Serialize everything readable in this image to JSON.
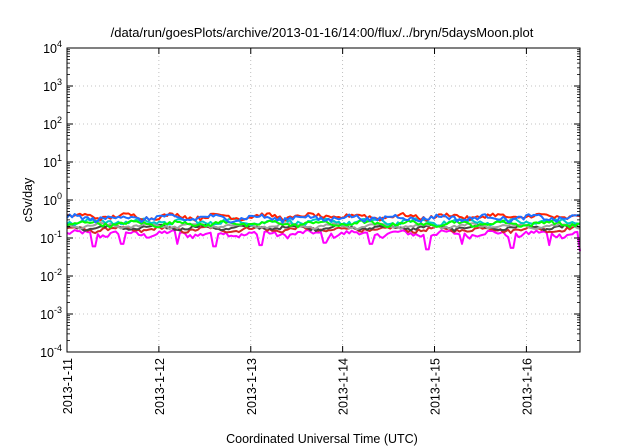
{
  "chart_data": {
    "type": "line",
    "title": "/data/run/goesPlots/archive/2013-01-16/14:00/flux/../bryn/5daysMoon.plot",
    "xlabel": "Coordinated Universal Time (UTC)",
    "ylabel": "cSv/day",
    "y_scale": "log",
    "ylim": [
      0.0001,
      10000
    ],
    "xlim": [
      "2013-01-11 00:00",
      "2013-01-16 14:00"
    ],
    "x_ticks": [
      "2013-1-11",
      "2013-1-12",
      "2013-1-13",
      "2013-1-14",
      "2013-1-15",
      "2013-1-16"
    ],
    "y_ticks": [
      {
        "value": 0.0001,
        "base": "10",
        "exp": "-4"
      },
      {
        "value": 0.001,
        "base": "10",
        "exp": "-3"
      },
      {
        "value": 0.01,
        "base": "10",
        "exp": "-2"
      },
      {
        "value": 0.1,
        "base": "10",
        "exp": "-1"
      },
      {
        "value": 1,
        "base": "10",
        "exp": "0"
      },
      {
        "value": 10,
        "base": "10",
        "exp": "1"
      },
      {
        "value": 100,
        "base": "10",
        "exp": "2"
      },
      {
        "value": 1000,
        "base": "10",
        "exp": "3"
      },
      {
        "value": 10000,
        "base": "10",
        "exp": "4"
      }
    ],
    "grid": true,
    "series": [
      {
        "color": "#ff00ff",
        "base": 0.13,
        "var": 0.14,
        "spikes": [
          {
            "x": 0.3,
            "v": 0.06
          },
          {
            "x": 0.6,
            "v": 0.07
          },
          {
            "x": 1.2,
            "v": 0.07
          },
          {
            "x": 1.6,
            "v": 0.06
          },
          {
            "x": 2.1,
            "v": 0.065
          },
          {
            "x": 2.8,
            "v": 0.075
          },
          {
            "x": 3.3,
            "v": 0.07
          },
          {
            "x": 3.92,
            "v": 0.05
          },
          {
            "x": 4.3,
            "v": 0.07
          },
          {
            "x": 4.85,
            "v": 0.055
          },
          {
            "x": 5.25,
            "v": 0.065
          },
          {
            "x": 5.58,
            "v": 0.045
          }
        ]
      },
      {
        "color": "#d62728",
        "base": 0.17,
        "var": 0.1,
        "spikes": []
      },
      {
        "color": "#444444",
        "base": 0.19,
        "var": 0.08,
        "spikes": []
      },
      {
        "color": "#a0a0a0",
        "base": 0.21,
        "var": 0.08,
        "spikes": []
      },
      {
        "color": "#00c8c8",
        "base": 0.27,
        "var": 0.12,
        "spikes": []
      },
      {
        "color": "#00ff00",
        "base": 0.24,
        "var": 0.1,
        "spikes": []
      },
      {
        "color": "#ff2200",
        "base": 0.37,
        "var": 0.12,
        "spikes": []
      },
      {
        "color": "#1e6fff",
        "base": 0.34,
        "var": 0.14,
        "spikes": []
      }
    ]
  }
}
